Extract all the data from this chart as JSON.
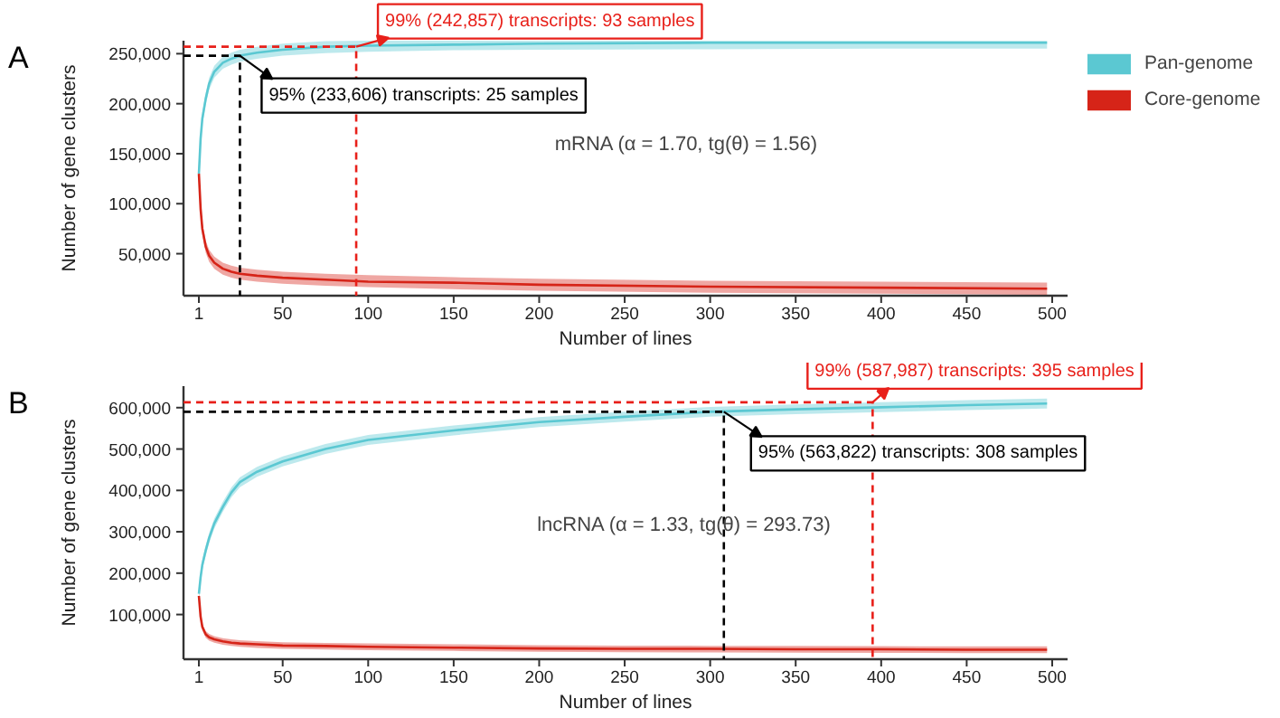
{
  "chart_data": [
    {
      "type": "line",
      "title": "A",
      "xlabel": "Number of lines",
      "ylabel": "Number of gene clusters",
      "xlim": [
        -8,
        509
      ],
      "ylim": [
        8000,
        263000
      ],
      "xticks": [
        1,
        50,
        100,
        150,
        200,
        250,
        300,
        350,
        400,
        450,
        500
      ],
      "yticks": [
        {
          "value": 50000,
          "label": "50,000"
        },
        {
          "value": 100000,
          "label": "100,000"
        },
        {
          "value": 150000,
          "label": "150,000"
        },
        {
          "value": 200000,
          "label": "200,000"
        },
        {
          "value": 250000,
          "label": "250,000"
        }
      ],
      "x": [
        1,
        2,
        3,
        5,
        7,
        10,
        15,
        20,
        25,
        35,
        50,
        75,
        100,
        150,
        200,
        300,
        400,
        497
      ],
      "series": [
        {
          "name": "Pan-genome",
          "color": "#5bc8d2",
          "values": [
            130000,
            165000,
            185000,
            205000,
            220000,
            232000,
            241000,
            245000,
            248000,
            251000,
            254000,
            257000,
            258000,
            259000,
            260000,
            261000,
            261000,
            261000
          ],
          "lower": [
            124000,
            159000,
            179000,
            199000,
            214000,
            226000,
            235000,
            239000,
            242000,
            245000,
            248000,
            250500,
            252000,
            253500,
            254000,
            254500,
            255000,
            255000
          ],
          "upper": [
            136000,
            171000,
            191000,
            211000,
            226000,
            238000,
            247000,
            251000,
            254000,
            257000,
            260000,
            262500,
            263000,
            263000,
            263000,
            263000,
            263000,
            263000
          ]
        },
        {
          "name": "Core-genome",
          "color": "#d62418",
          "values": [
            130000,
            95000,
            75000,
            57000,
            48000,
            41000,
            35000,
            32000,
            30000,
            28000,
            26000,
            24000,
            22000,
            21000,
            19000,
            17000,
            16000,
            15000
          ],
          "lower": [
            124000,
            89000,
            69000,
            51000,
            42000,
            35000,
            29000,
            26000,
            24000,
            22000,
            20000,
            18000,
            16500,
            14500,
            13000,
            11000,
            10000,
            9000
          ],
          "upper": [
            136000,
            101000,
            81000,
            63000,
            54000,
            47000,
            41000,
            38000,
            36000,
            34000,
            32000,
            30000,
            28500,
            26500,
            25000,
            23000,
            22000,
            21000
          ]
        },
        {
          "type": "line",
          "line_style": "dashed",
          "color": "#000000",
          "x": [
            -8,
            25,
            25
          ],
          "values": [
            248000,
            248000,
            8000
          ]
        },
        {
          "type": "line",
          "line_style": "dashed",
          "color": "#e8201a",
          "x": [
            -8,
            93,
            93
          ],
          "values": [
            257000,
            257000,
            8000
          ]
        }
      ],
      "annotations": [
        {
          "text": "95% (233,606) transcripts: 25 samples",
          "x": 25,
          "y": 248000
        },
        {
          "text": "99% (242,857) transcripts: 93 samples",
          "x": 93,
          "y": 257000
        },
        "mRNA (α = 1.70, tg(θ) = 1.56)"
      ],
      "line_style": "solid",
      "marker": "none",
      "grid": false,
      "legend": "right"
    },
    {
      "type": "line",
      "title": "B",
      "xlabel": "Number of lines",
      "ylabel": "Number of gene clusters",
      "xlim": [
        -8,
        509
      ],
      "ylim": [
        -8000,
        652000
      ],
      "xticks": [
        1,
        50,
        100,
        150,
        200,
        250,
        300,
        350,
        400,
        450,
        500
      ],
      "yticks": [
        {
          "value": 100000,
          "label": "100,000"
        },
        {
          "value": 200000,
          "label": "200,000"
        },
        {
          "value": 300000,
          "label": "300,000"
        },
        {
          "value": 400000,
          "label": "400,000"
        },
        {
          "value": 500000,
          "label": "500,000"
        },
        {
          "value": 600000,
          "label": "600,000"
        }
      ],
      "x": [
        1,
        2,
        3,
        5,
        7,
        10,
        15,
        20,
        25,
        35,
        50,
        75,
        100,
        150,
        200,
        250,
        300,
        350,
        400,
        450,
        497
      ],
      "series": [
        {
          "color": "#5bc8d2",
          "values": [
            150000,
            190000,
            220000,
            255000,
            285000,
            320000,
            360000,
            395000,
            420000,
            445000,
            470000,
            500000,
            522000,
            545000,
            565000,
            578000,
            590000,
            596000,
            601000,
            606000,
            610000
          ],
          "lower": [
            138000,
            178000,
            208000,
            243000,
            273000,
            308000,
            348000,
            383000,
            408000,
            433000,
            458000,
            488000,
            510000,
            533000,
            553000,
            566000,
            578000,
            584000,
            589000,
            594000,
            598000
          ],
          "upper": [
            162000,
            202000,
            232000,
            267000,
            297000,
            332000,
            372000,
            407000,
            432000,
            457000,
            482000,
            512000,
            534000,
            557000,
            577000,
            590000,
            602000,
            608000,
            613000,
            618000,
            622000
          ]
        },
        {
          "color": "#d62418",
          "values": [
            145000,
            95000,
            70000,
            52000,
            45000,
            40000,
            35000,
            32000,
            30000,
            28000,
            25000,
            24000,
            22000,
            20000,
            18000,
            17000,
            17000,
            16000,
            16000,
            15000,
            15000
          ],
          "lower": [
            137000,
            87000,
            62000,
            44000,
            37000,
            32000,
            27000,
            24000,
            22000,
            19500,
            17000,
            15500,
            14000,
            12000,
            10000,
            9000,
            8500,
            8000,
            7500,
            7000,
            7000
          ],
          "upper": [
            153000,
            103000,
            78000,
            60000,
            53000,
            48000,
            43000,
            40000,
            38000,
            35500,
            33000,
            31500,
            30000,
            28000,
            26000,
            25000,
            24500,
            24000,
            23500,
            23000,
            23000
          ]
        },
        {
          "type": "line",
          "line_style": "dashed",
          "color": "#000000",
          "x": [
            -8,
            308,
            308
          ],
          "values": [
            590000,
            590000,
            -8000
          ]
        },
        {
          "type": "line",
          "line_style": "dashed",
          "color": "#e8201a",
          "x": [
            -8,
            395,
            395
          ],
          "values": [
            613000,
            613000,
            -8000
          ]
        }
      ],
      "annotations": [
        {
          "text": "95% (563,822) transcripts: 308 samples",
          "x": 308,
          "y": 590000
        },
        {
          "text": "99% (587,987) transcripts: 395 samples",
          "x": 395,
          "y": 613000
        },
        "lncRNA (α = 1.33, tg(θ) = 293.73)"
      ],
      "line_style": "solid",
      "marker": "none",
      "grid": false,
      "legend": false
    }
  ]
}
